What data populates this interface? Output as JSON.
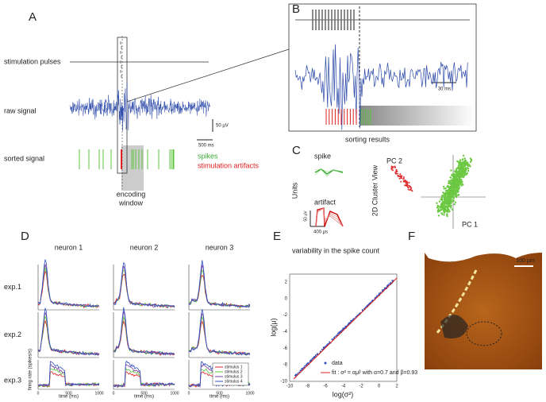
{
  "panels": {
    "A": {
      "letter": "A",
      "labels": [
        "stimulation pulses",
        "raw signal",
        "sorted signal"
      ],
      "scale_voltage": "50 µV",
      "scale_time": "500 ms",
      "legend": [
        "spikes",
        "stimulation artifacts"
      ],
      "window_label": [
        "encoding",
        "window"
      ]
    },
    "B": {
      "letter": "B",
      "scale_time": "30 ms",
      "caption": "sorting results"
    },
    "C": {
      "letter": "C",
      "units_title": "Units",
      "unit_labels": [
        "spike",
        "artifact"
      ],
      "scale_voltage": "50 µV",
      "scale_time": "400 µs",
      "cluster_title": "2D Cluster View",
      "axes": [
        "PC 2",
        "PC 1"
      ]
    },
    "D": {
      "letter": "D",
      "columns": [
        "neuron 1",
        "neuron 2",
        "neuron 3"
      ],
      "rows": [
        "exp.1",
        "exp.2",
        "exp.3"
      ],
      "ylabel": "firing rate (spikes/s)",
      "xlabel": "time (ms)",
      "xticks": [
        "0",
        "500",
        "1000"
      ],
      "legend": [
        "stimulus 1",
        "stimulus 2",
        "stimulus 3",
        "stimulus 4"
      ]
    },
    "E": {
      "letter": "E",
      "title": "variability in the spike count",
      "xlabel": "log(σ²)",
      "ylabel": "log(μ)",
      "xticks": [
        -10,
        -8,
        -6,
        -4,
        -2,
        0,
        2
      ],
      "yticks": [
        2,
        0,
        -2,
        -4,
        -6,
        -8,
        -10
      ],
      "legend": [
        "data",
        "fit : σ² = αμᵝ with α=0.7 and β=0.93"
      ]
    },
    "F": {
      "letter": "F",
      "scale": "100 µm"
    }
  }
}
